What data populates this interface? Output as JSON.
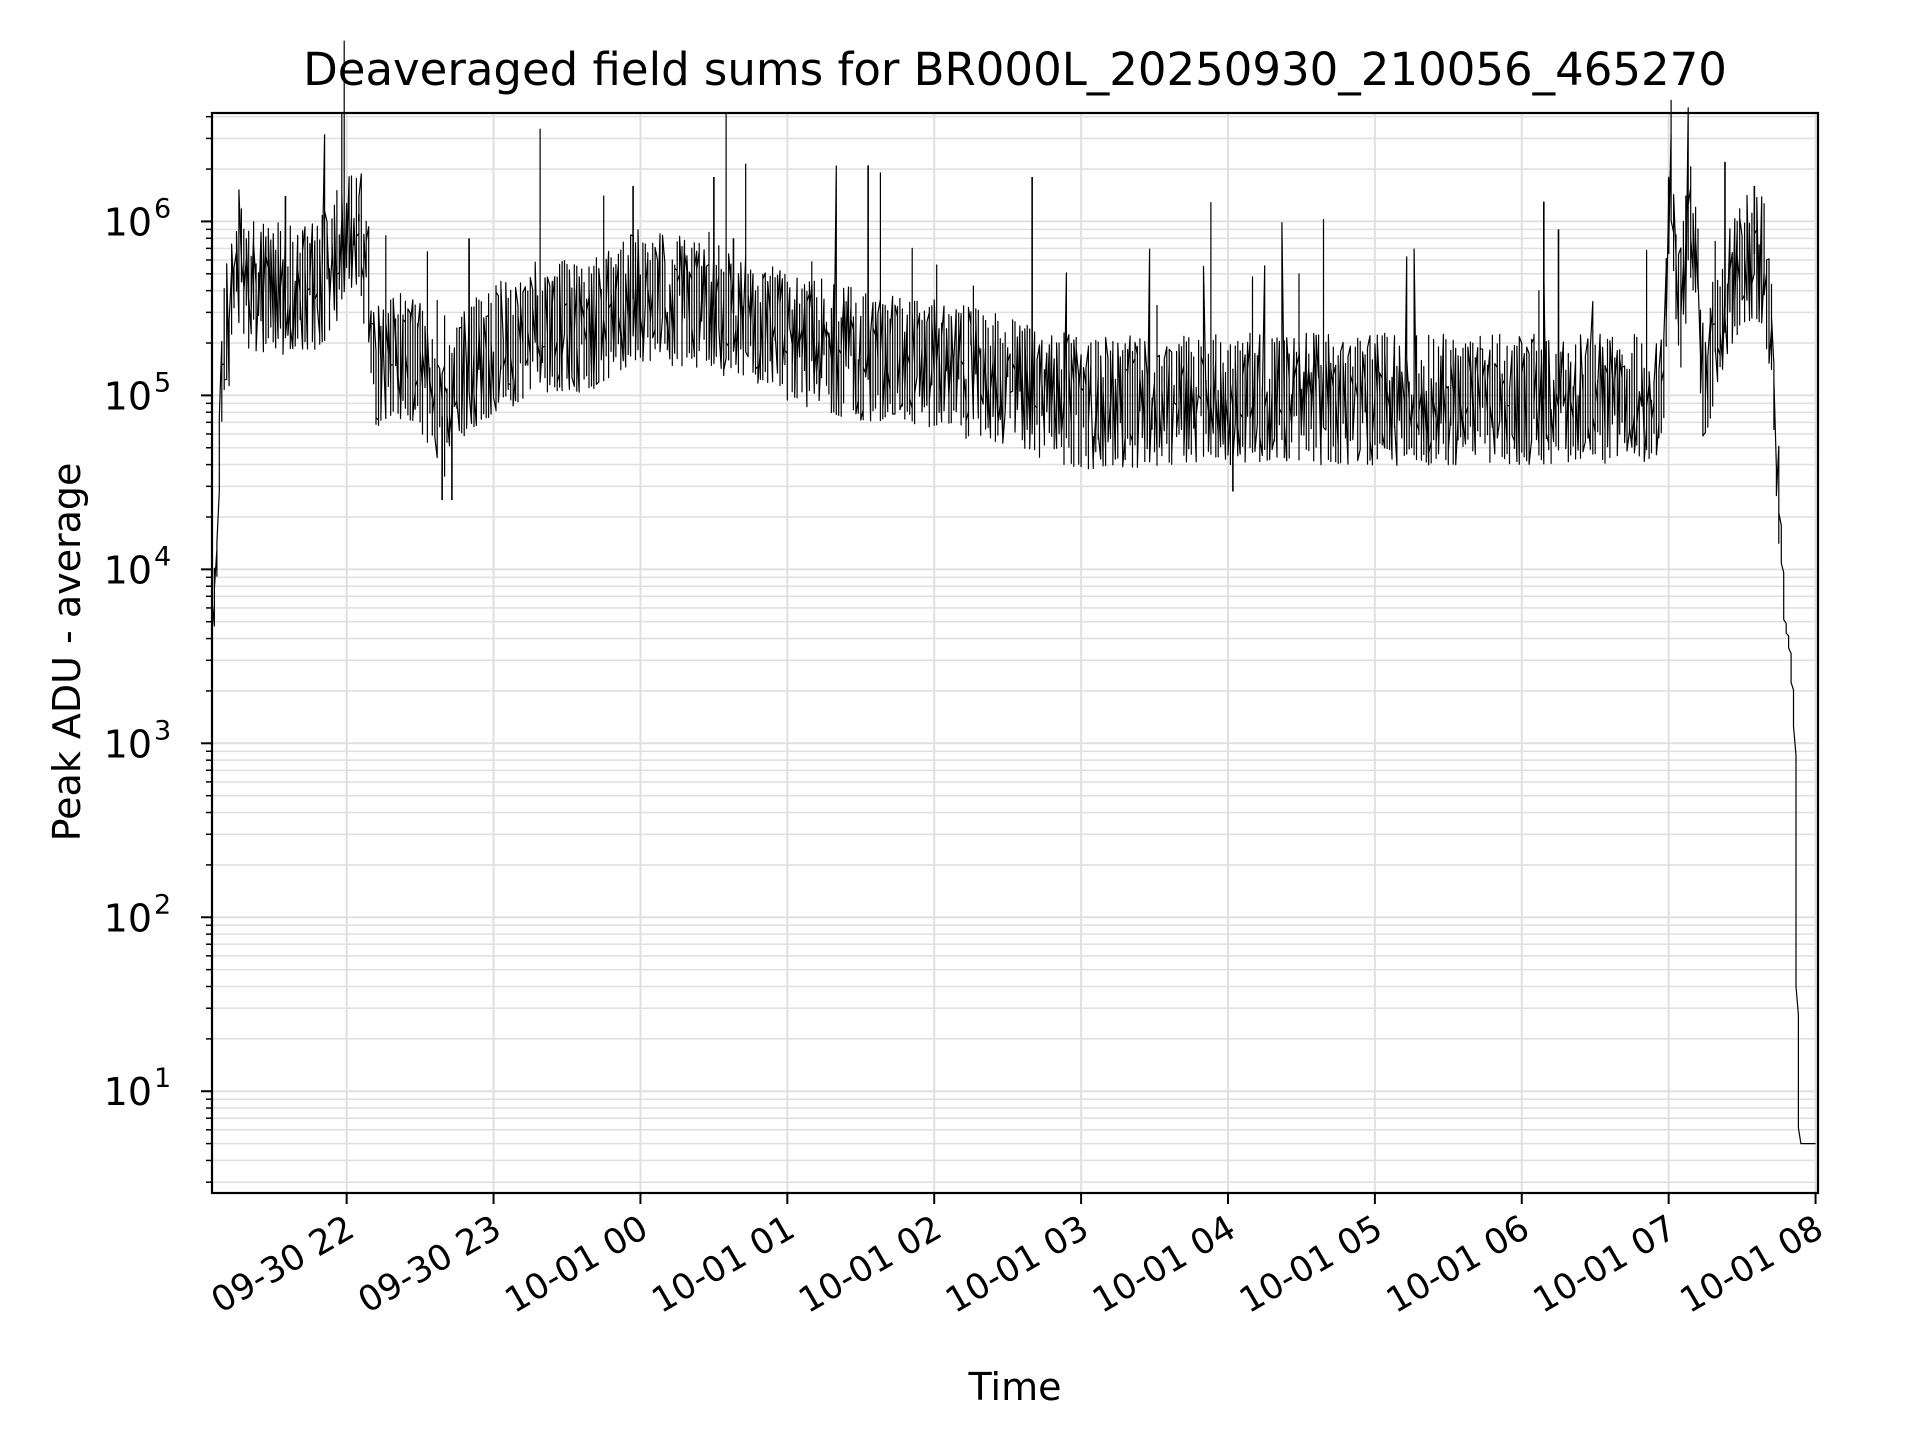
{
  "chart_data": {
    "type": "line",
    "title": "Deaveraged field sums for BR000L_20250930_210056_465270",
    "xlabel": "Time",
    "ylabel": "Peak ADU - average",
    "yscale": "log",
    "ylim": [
      2.6,
      4200000
    ],
    "xlim": [
      "2025-09-30 21:05",
      "2025-10-01 08:01"
    ],
    "grid": true,
    "line_color": "#000000",
    "grid_color": "#e0e0e0",
    "x_ticks": [
      {
        "t": "2025-09-30 22:00",
        "label": "09-30 22"
      },
      {
        "t": "2025-09-30 23:00",
        "label": "09-30 23"
      },
      {
        "t": "2025-10-01 00:00",
        "label": "10-01 00"
      },
      {
        "t": "2025-10-01 01:00",
        "label": "10-01 01"
      },
      {
        "t": "2025-10-01 02:00",
        "label": "10-01 02"
      },
      {
        "t": "2025-10-01 03:00",
        "label": "10-01 03"
      },
      {
        "t": "2025-10-01 04:00",
        "label": "10-01 04"
      },
      {
        "t": "2025-10-01 05:00",
        "label": "10-01 05"
      },
      {
        "t": "2025-10-01 06:00",
        "label": "10-01 06"
      },
      {
        "t": "2025-10-01 07:00",
        "label": "10-01 07"
      },
      {
        "t": "2025-10-01 08:00",
        "label": "10-01 08"
      }
    ],
    "y_ticks": [
      {
        "value": 10,
        "base": "10",
        "exp": "1"
      },
      {
        "value": 100,
        "base": "10",
        "exp": "2"
      },
      {
        "value": 1000,
        "base": "10",
        "exp": "3"
      },
      {
        "value": 10000,
        "base": "10",
        "exp": "4"
      },
      {
        "value": 100000,
        "base": "10",
        "exp": "5"
      },
      {
        "value": 1000000,
        "base": "10",
        "exp": "6"
      }
    ],
    "series": [
      {
        "x": [
          "2025-09-30 21:05",
          "2025-09-30 21:06",
          "2025-09-30 21:07",
          "2025-09-30 21:08",
          "2025-09-30 21:09",
          "2025-09-30 21:11",
          "2025-09-30 21:13",
          "2025-09-30 21:15",
          "2025-09-30 21:20",
          "2025-09-30 21:25",
          "2025-09-30 21:30",
          "2025-09-30 21:40",
          "2025-09-30 21:50",
          "2025-09-30 22:05",
          "2025-09-30 22:10",
          "2025-09-30 22:12",
          "2025-09-30 22:15",
          "2025-09-30 22:20",
          "2025-09-30 22:30",
          "2025-09-30 22:40",
          "2025-09-30 22:50",
          "2025-09-30 23:00",
          "2025-09-30 23:20",
          "2025-09-30 23:40",
          "2025-10-01 00:00",
          "2025-10-01 00:30",
          "2025-10-01 01:00",
          "2025-10-01 01:30",
          "2025-10-01 02:00",
          "2025-10-01 02:30",
          "2025-10-01 03:00",
          "2025-10-01 04:00",
          "2025-10-01 05:00",
          "2025-10-01 06:00",
          "2025-10-01 06:58",
          "2025-10-01 07:01",
          "2025-10-01 07:05",
          "2025-10-01 07:10",
          "2025-10-01 07:15",
          "2025-10-01 07:20",
          "2025-10-01 07:25",
          "2025-10-01 07:30",
          "2025-10-01 07:35",
          "2025-10-01 07:40",
          "2025-10-01 07:43",
          "2025-10-01 07:46",
          "2025-10-01 07:48",
          "2025-10-01 07:50",
          "2025-10-01 07:52",
          "2025-10-01 07:53",
          "2025-10-01 07:54",
          "2025-10-01 08:01"
        ],
        "y": [
          4000,
          6000,
          9000,
          20000,
          100000,
          250000,
          280000,
          400000,
          450000,
          400000,
          420000,
          400000,
          450000,
          1000000,
          400000,
          150000,
          170000,
          180000,
          150000,
          70000,
          150000,
          180000,
          250000,
          250000,
          380000,
          330000,
          220000,
          170000,
          150000,
          120000,
          90000,
          95000,
          95000,
          95000,
          95000,
          1700000,
          300000,
          1200000,
          120000,
          230000,
          400000,
          550000,
          650000,
          550000,
          150000,
          20000,
          5000,
          3500,
          1200,
          40,
          5,
          5
        ]
      }
    ],
    "spikes": [
      {
        "t": "2025-09-30 21:35",
        "y": 1400000
      },
      {
        "t": "2025-09-30 21:58",
        "y": 900000
      },
      {
        "t": "2025-09-30 22:05",
        "y": 1100000
      },
      {
        "t": "2025-09-30 22:39",
        "y": 25000
      },
      {
        "t": "2025-09-30 22:43",
        "y": 25000
      },
      {
        "t": "2025-09-30 22:50",
        "y": 800000
      },
      {
        "t": "2025-09-30 23:57",
        "y": 1600000
      },
      {
        "t": "2025-10-01 00:30",
        "y": 1800000
      },
      {
        "t": "2025-10-01 00:38",
        "y": 800000
      },
      {
        "t": "2025-10-01 01:33",
        "y": 2100000
      },
      {
        "t": "2025-10-01 02:40",
        "y": 1800000
      },
      {
        "t": "2025-10-01 04:02",
        "y": 28000
      },
      {
        "t": "2025-10-01 06:09",
        "y": 1300000
      },
      {
        "t": "2025-10-01 06:15",
        "y": 900000
      },
      {
        "t": "2025-10-01 07:00",
        "y": 1750000
      },
      {
        "t": "2025-10-01 07:23",
        "y": 2200000
      },
      {
        "t": "2025-10-01 07:35",
        "y": 1600000
      }
    ]
  }
}
